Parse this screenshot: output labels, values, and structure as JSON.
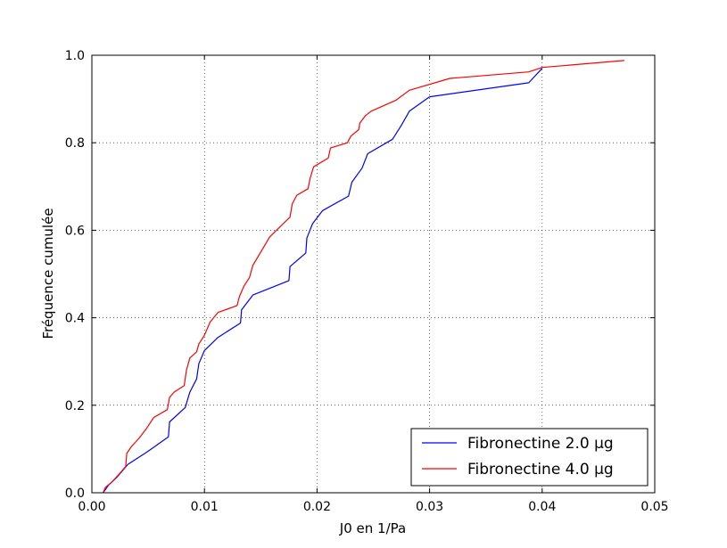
{
  "chart_data": {
    "type": "line",
    "title": "",
    "xlabel": "J0 en 1/Pa",
    "ylabel": "Fréquence cumulée",
    "xlim": [
      0.0,
      0.05
    ],
    "ylim": [
      0.0,
      1.0
    ],
    "xticks": [
      "0.00",
      "0.01",
      "0.02",
      "0.03",
      "0.04",
      "0.05"
    ],
    "yticks": [
      "0.0",
      "0.2",
      "0.4",
      "0.6",
      "0.8",
      "1.0"
    ],
    "grid": true,
    "legend_position": "bottom-right",
    "series": [
      {
        "name": "Fibronectine 2.0 µg",
        "color": "#0000ff",
        "points": [
          [
            0.001,
            0.0
          ],
          [
            0.0015,
            0.018
          ],
          [
            0.0022,
            0.035
          ],
          [
            0.0027,
            0.05
          ],
          [
            0.0032,
            0.065
          ],
          [
            0.005,
            0.095
          ],
          [
            0.0068,
            0.128
          ],
          [
            0.0069,
            0.162
          ],
          [
            0.0083,
            0.195
          ],
          [
            0.0087,
            0.23
          ],
          [
            0.0093,
            0.26
          ],
          [
            0.0095,
            0.295
          ],
          [
            0.01,
            0.325
          ],
          [
            0.0112,
            0.355
          ],
          [
            0.0132,
            0.388
          ],
          [
            0.0133,
            0.418
          ],
          [
            0.0143,
            0.452
          ],
          [
            0.0175,
            0.485
          ],
          [
            0.0176,
            0.517
          ],
          [
            0.019,
            0.548
          ],
          [
            0.0191,
            0.582
          ],
          [
            0.0196,
            0.615
          ],
          [
            0.0205,
            0.645
          ],
          [
            0.0228,
            0.678
          ],
          [
            0.0231,
            0.71
          ],
          [
            0.024,
            0.742
          ],
          [
            0.0245,
            0.775
          ],
          [
            0.0267,
            0.808
          ],
          [
            0.0275,
            0.84
          ],
          [
            0.0282,
            0.872
          ],
          [
            0.03,
            0.905
          ],
          [
            0.0388,
            0.937
          ],
          [
            0.04,
            0.97
          ]
        ]
      },
      {
        "name": "Fibronectine 4.0 µg",
        "color": "#ff0000",
        "points": [
          [
            0.001,
            0.0
          ],
          [
            0.0012,
            0.012
          ],
          [
            0.0018,
            0.025
          ],
          [
            0.0025,
            0.045
          ],
          [
            0.003,
            0.06
          ],
          [
            0.0031,
            0.09
          ],
          [
            0.0035,
            0.105
          ],
          [
            0.0042,
            0.125
          ],
          [
            0.0048,
            0.145
          ],
          [
            0.0055,
            0.172
          ],
          [
            0.0067,
            0.19
          ],
          [
            0.0069,
            0.218
          ],
          [
            0.0073,
            0.23
          ],
          [
            0.0082,
            0.245
          ],
          [
            0.0084,
            0.28
          ],
          [
            0.0087,
            0.308
          ],
          [
            0.0093,
            0.322
          ],
          [
            0.0095,
            0.34
          ],
          [
            0.01,
            0.36
          ],
          [
            0.0105,
            0.39
          ],
          [
            0.0112,
            0.412
          ],
          [
            0.0129,
            0.428
          ],
          [
            0.0131,
            0.448
          ],
          [
            0.0135,
            0.472
          ],
          [
            0.014,
            0.492
          ],
          [
            0.0143,
            0.52
          ],
          [
            0.015,
            0.55
          ],
          [
            0.0158,
            0.585
          ],
          [
            0.017,
            0.615
          ],
          [
            0.0176,
            0.63
          ],
          [
            0.0178,
            0.66
          ],
          [
            0.0182,
            0.68
          ],
          [
            0.0192,
            0.695
          ],
          [
            0.0194,
            0.72
          ],
          [
            0.0197,
            0.745
          ],
          [
            0.021,
            0.765
          ],
          [
            0.0212,
            0.788
          ],
          [
            0.0227,
            0.8
          ],
          [
            0.023,
            0.815
          ],
          [
            0.0237,
            0.83
          ],
          [
            0.0238,
            0.845
          ],
          [
            0.0243,
            0.862
          ],
          [
            0.0248,
            0.872
          ],
          [
            0.027,
            0.897
          ],
          [
            0.0282,
            0.92
          ],
          [
            0.0318,
            0.947
          ],
          [
            0.0388,
            0.962
          ],
          [
            0.04,
            0.972
          ],
          [
            0.0473,
            0.988
          ]
        ]
      }
    ]
  }
}
